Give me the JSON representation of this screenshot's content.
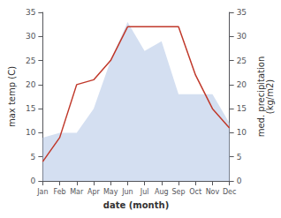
{
  "chart_data": {
    "type": "line",
    "xlabel": "date (month)",
    "ylabel": "max temp (C)",
    "y2label": "med. precipitation\n(kg/m2)",
    "categories": [
      "Jan",
      "Feb",
      "Mar",
      "Apr",
      "May",
      "Jun",
      "Jul",
      "Aug",
      "Sep",
      "Oct",
      "Nov",
      "Dec"
    ],
    "series": [
      {
        "type": "area",
        "color": "#b8c9e8",
        "axis": "y2",
        "values": [
          9,
          10,
          10,
          15,
          25,
          33,
          27,
          29,
          18,
          18,
          18,
          12
        ]
      },
      {
        "type": "line",
        "color": "#c0392b",
        "values": [
          4,
          9,
          20,
          21,
          25,
          32,
          32,
          32,
          32,
          22,
          15,
          11
        ]
      }
    ],
    "ylim": [
      0,
      35
    ],
    "yticks": [
      0,
      5,
      10,
      15,
      20,
      25,
      30,
      35
    ],
    "y2lim": [
      0,
      35
    ],
    "y2ticks": [
      0,
      5,
      10,
      15,
      20,
      25,
      30,
      35
    ],
    "grid": false
  }
}
